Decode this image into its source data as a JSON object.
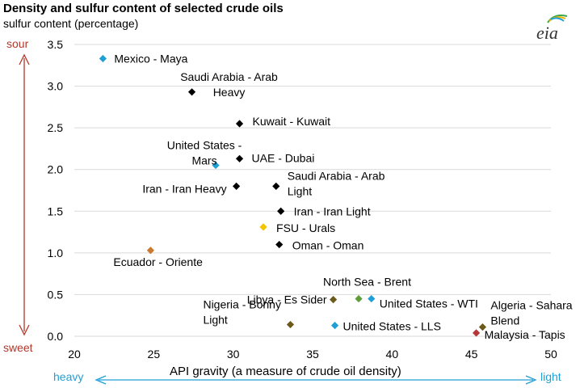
{
  "chart_data": {
    "type": "scatter",
    "title": "Density and sulfur content of selected crude oils",
    "ylabel": "sulfur content (percentage)",
    "xlabel": "API gravity (a measure of crude oil density)",
    "xlim": [
      20,
      50
    ],
    "ylim": [
      0,
      3.5
    ],
    "x_ticks": [
      "20",
      "25",
      "30",
      "35",
      "40",
      "45",
      "50"
    ],
    "y_ticks": [
      "0.0",
      "0.5",
      "1.0",
      "1.5",
      "2.0",
      "2.5",
      "3.0",
      "3.5"
    ],
    "grid": "horizontal",
    "annotations": {
      "top": "sour",
      "bottom": "sweet",
      "left": "heavy",
      "right": "light"
    },
    "points": [
      {
        "label": [
          "Mexico - Maya"
        ],
        "x": 21.8,
        "y": 3.33,
        "color": "#1e9fd6"
      },
      {
        "label": [
          "Saudi Arabia - Arab",
          "Heavy"
        ],
        "x": 27.4,
        "y": 2.93,
        "color": "#000000"
      },
      {
        "label": [
          "Kuwait - Kuwait"
        ],
        "x": 30.4,
        "y": 2.55,
        "color": "#000000"
      },
      {
        "label": [
          "UAE - Dubai"
        ],
        "x": 30.4,
        "y": 2.13,
        "color": "#000000"
      },
      {
        "label": [
          "United States -",
          "Mars"
        ],
        "x": 28.9,
        "y": 2.05,
        "color": "#1e9fd6"
      },
      {
        "label": [
          "Iran - Iran Heavy"
        ],
        "x": 30.2,
        "y": 1.8,
        "color": "#000000"
      },
      {
        "label": [
          "Saudi Arabia - Arab",
          "Light"
        ],
        "x": 32.7,
        "y": 1.8,
        "color": "#000000"
      },
      {
        "label": [
          "Iran - Iran Light"
        ],
        "x": 33.0,
        "y": 1.5,
        "color": "#000000"
      },
      {
        "label": [
          "FSU - Urals"
        ],
        "x": 31.9,
        "y": 1.31,
        "color": "#f5c400"
      },
      {
        "label": [
          "Oman - Oman"
        ],
        "x": 32.9,
        "y": 1.1,
        "color": "#000000"
      },
      {
        "label": [
          "Ecuador - Oriente"
        ],
        "x": 24.8,
        "y": 1.03,
        "color": "#c97a2e"
      },
      {
        "label": [
          "Libya - Es Sider"
        ],
        "x": 36.3,
        "y": 0.44,
        "color": "#6b5a1a"
      },
      {
        "label": [
          "North Sea - Brent"
        ],
        "x": 37.9,
        "y": 0.45,
        "color": "#5e9e3a"
      },
      {
        "label": [
          "United States - WTI"
        ],
        "x": 38.7,
        "y": 0.45,
        "color": "#1e9fd6"
      },
      {
        "label": [
          "Nigeria - Bonny",
          "Light"
        ],
        "x": 33.6,
        "y": 0.14,
        "color": "#6b5a1a"
      },
      {
        "label": [
          "United States - LLS"
        ],
        "x": 36.4,
        "y": 0.13,
        "color": "#1e9fd6"
      },
      {
        "label": [
          "Algeria - Sahara",
          "Blend"
        ],
        "x": 45.7,
        "y": 0.11,
        "color": "#6b5a1a"
      },
      {
        "label": [
          "Malaysia - Tapis"
        ],
        "x": 45.3,
        "y": 0.04,
        "color": "#b5373a"
      }
    ]
  },
  "logo": {
    "text": "eia"
  },
  "colors": {
    "arrow_vertical": "#b5372a",
    "arrow_horizontal": "#1e9fd6",
    "grid": "#d9d9d9"
  }
}
